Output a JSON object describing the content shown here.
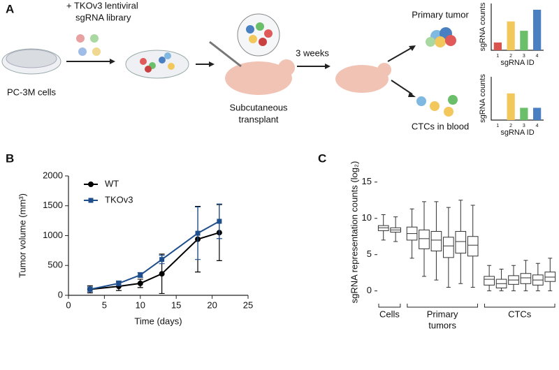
{
  "panel_labels": [
    "A",
    "B",
    "C"
  ],
  "diagram": {
    "library_label": [
      "+ TKOv3 lentiviral",
      "sgRNA library"
    ],
    "cells_label": "PC-3M cells",
    "transplant_label": [
      "Subcutaneous",
      "transplant"
    ],
    "time_label": "3 weeks",
    "tumor_label": "Primary tumor",
    "ctc_label": "CTCs in blood"
  },
  "chart_data": [
    {
      "type": "bar",
      "ylabel": "sgRNA counts",
      "xlabel": "sgRNA ID",
      "categories": [
        "1",
        "2",
        "3",
        "4"
      ],
      "values": [
        1,
        3.7,
        2.5,
        5.2
      ],
      "colors": [
        "#d9534f",
        "#f2c75c",
        "#6cbf6a",
        "#4a7fc1"
      ],
      "ylim": [
        0,
        6
      ]
    },
    {
      "type": "bar",
      "ylabel": "sgRNA counts",
      "xlabel": "sgRNA ID",
      "categories": [
        "1",
        "2",
        "3",
        "4"
      ],
      "values": [
        0,
        3.7,
        1.7,
        1.7
      ],
      "colors": [
        "#d9534f",
        "#f2c75c",
        "#6cbf6a",
        "#4a7fc1"
      ],
      "ylim": [
        0,
        6
      ]
    },
    {
      "type": "line",
      "xlabel": "Time (days)",
      "ylabel": "Tumor volume (mm³)",
      "x": [
        3,
        7,
        10,
        13,
        18,
        21
      ],
      "series": [
        {
          "name": "WT",
          "color": "#000000",
          "marker": "circle",
          "values": [
            100,
            150,
            200,
            360,
            940,
            1050
          ],
          "errors": [
            60,
            70,
            70,
            330,
            550,
            470
          ]
        },
        {
          "name": "TKOv3",
          "color": "#1f4e8c",
          "marker": "square",
          "values": [
            100,
            200,
            340,
            600,
            1040,
            1240
          ],
          "errors": [
            40,
            40,
            40,
            70,
            440,
            290
          ]
        }
      ],
      "xlim": [
        0,
        25
      ],
      "xticks": [
        0,
        5,
        10,
        15,
        20,
        25
      ],
      "ylim": [
        0,
        2000
      ],
      "yticks": [
        0,
        500,
        1000,
        1500,
        2000
      ]
    },
    {
      "type": "box",
      "ylabel": "sgRNA representation counts (log₂)",
      "ylim": [
        -0.8,
        17
      ],
      "yticks": [
        0,
        5,
        10,
        15
      ],
      "groups": [
        {
          "label": [
            "Cells"
          ],
          "boxes": [
            {
              "min": 7,
              "q1": 8.3,
              "median": 8.7,
              "q3": 9.0,
              "max": 10.5
            },
            {
              "min": 6.8,
              "q1": 8.1,
              "median": 8.4,
              "q3": 8.7,
              "max": 10.2
            }
          ]
        },
        {
          "label": [
            "Primary",
            "tumors"
          ],
          "boxes": [
            {
              "min": 4.5,
              "q1": 7,
              "median": 7.9,
              "q3": 8.8,
              "max": 11.3
            },
            {
              "min": 2,
              "q1": 5.8,
              "median": 7.2,
              "q3": 8.4,
              "max": 12.3
            },
            {
              "min": 1.5,
              "q1": 5.5,
              "median": 7.0,
              "q3": 8.2,
              "max": 12.3
            },
            {
              "min": 0.5,
              "q1": 4.6,
              "median": 6.2,
              "q3": 7.4,
              "max": 11.5
            },
            {
              "min": 1,
              "q1": 5.2,
              "median": 6.8,
              "q3": 8.2,
              "max": 12.5
            },
            {
              "min": 0.5,
              "q1": 4.8,
              "median": 6.3,
              "q3": 7.5,
              "max": 11.8
            }
          ]
        },
        {
          "label": [
            "CTCs"
          ],
          "boxes": [
            {
              "min": 0,
              "q1": 0.8,
              "median": 1.6,
              "q3": 2.0,
              "max": 3.5
            },
            {
              "min": 0,
              "q1": 0.4,
              "median": 1.0,
              "q3": 1.6,
              "max": 3
            },
            {
              "min": 0,
              "q1": 0.9,
              "median": 1.5,
              "q3": 2.1,
              "max": 3.5
            },
            {
              "min": 0,
              "q1": 1.0,
              "median": 1.8,
              "q3": 2.4,
              "max": 4.2
            },
            {
              "min": 0,
              "q1": 0.8,
              "median": 1.5,
              "q3": 2.2,
              "max": 3.8
            },
            {
              "min": 0,
              "q1": 1.3,
              "median": 1.9,
              "q3": 2.6,
              "max": 4.5
            }
          ]
        }
      ]
    }
  ]
}
